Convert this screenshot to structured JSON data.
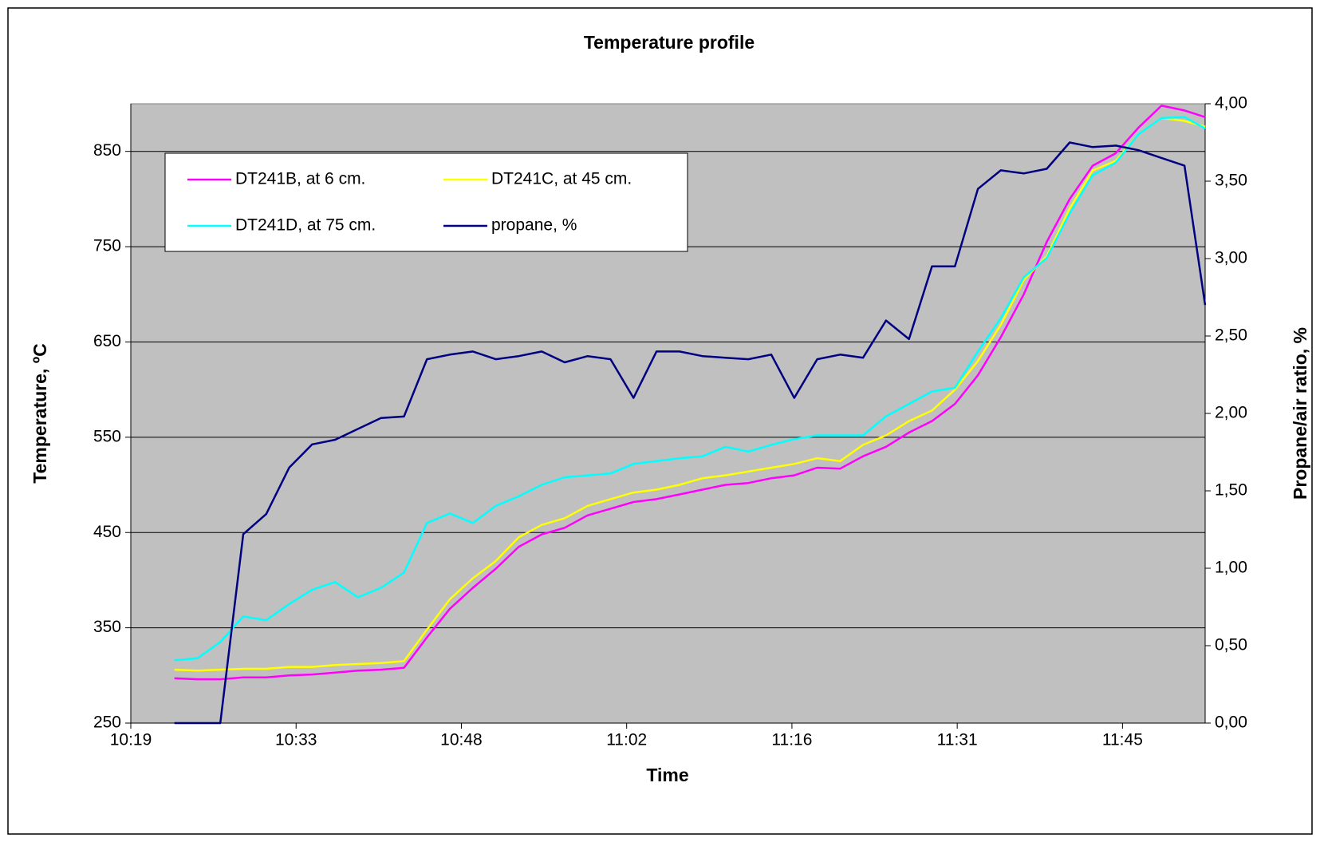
{
  "chart_data": {
    "type": "line",
    "title": "Temperature profile",
    "x_label": "Time",
    "y_label": "Temperature, ºC",
    "y2_label": "Propane/air ratio, %",
    "x": [
      623,
      625,
      627,
      629,
      631,
      633,
      635,
      637,
      639,
      641,
      643,
      645,
      647,
      649,
      651,
      653,
      655,
      657,
      659,
      661,
      663,
      665,
      667,
      669,
      671,
      673,
      675,
      677,
      679,
      681,
      683,
      685,
      687,
      689,
      691,
      693,
      695,
      697,
      699,
      701,
      703,
      705,
      707,
      709,
      711,
      712.8
    ],
    "xlim": [
      619.2,
      712.8
    ],
    "xticks": [
      {
        "value": 619.2,
        "label": "10:19"
      },
      {
        "value": 633.6,
        "label": "10:33"
      },
      {
        "value": 648,
        "label": "10:48"
      },
      {
        "value": 662.4,
        "label": "11:02"
      },
      {
        "value": 676.8,
        "label": "11:16"
      },
      {
        "value": 691.2,
        "label": "11:31"
      },
      {
        "value": 705.6,
        "label": "11:45"
      }
    ],
    "ylim": [
      250,
      900
    ],
    "yticks": [
      250,
      350,
      450,
      550,
      650,
      750,
      850
    ],
    "y2lim": [
      0,
      4
    ],
    "y2ticks": [
      {
        "value": 0,
        "label": "0,00"
      },
      {
        "value": 0.5,
        "label": "0,50"
      },
      {
        "value": 1,
        "label": "1,00"
      },
      {
        "value": 1.5,
        "label": "1,50"
      },
      {
        "value": 2,
        "label": "2,00"
      },
      {
        "value": 2.5,
        "label": "2,50"
      },
      {
        "value": 3,
        "label": "3,00"
      },
      {
        "value": 3.5,
        "label": "3,50"
      },
      {
        "value": 4,
        "label": "4,00"
      }
    ],
    "grid": true,
    "legend": "upper left",
    "background": "#c0c0c0",
    "series": [
      {
        "name": "DT241B, at 6 cm.",
        "color": "#ff00ff",
        "values": [
          297,
          296,
          296,
          298,
          298,
          300,
          301,
          303,
          305,
          306,
          308,
          340,
          370,
          392,
          412,
          435,
          448,
          455,
          468,
          475,
          482,
          485,
          490,
          495,
          500,
          502,
          507,
          510,
          518,
          517,
          530,
          540,
          555,
          567,
          585,
          615,
          655,
          700,
          755,
          800,
          835,
          848,
          875,
          898,
          893,
          886
        ]
      },
      {
        "name": "DT241C, at 45 cm.",
        "color": "#ffff00",
        "values": [
          306,
          305,
          306,
          307,
          307,
          309,
          309,
          311,
          312,
          313,
          315,
          348,
          380,
          402,
          420,
          445,
          458,
          465,
          478,
          485,
          492,
          495,
          500,
          507,
          510,
          514,
          518,
          522,
          528,
          525,
          542,
          552,
          567,
          578,
          600,
          630,
          668,
          715,
          740,
          790,
          830,
          840,
          868,
          885,
          882,
          876
        ]
      },
      {
        "name": "DT241D, at 75 cm.",
        "color": "#00ffff",
        "values": [
          316,
          318,
          335,
          362,
          358,
          375,
          390,
          398,
          382,
          392,
          408,
          460,
          470,
          460,
          478,
          488,
          500,
          508,
          510,
          512,
          522,
          525,
          528,
          530,
          540,
          535,
          542,
          548,
          552,
          552,
          552,
          572,
          585,
          598,
          602,
          640,
          675,
          718,
          738,
          785,
          825,
          838,
          868,
          885,
          886,
          874
        ]
      },
      {
        "name": "propane, %",
        "color": "#000080",
        "axis": "y2",
        "values": [
          0,
          0,
          0,
          1.22,
          1.35,
          1.65,
          1.8,
          1.83,
          1.9,
          1.97,
          1.98,
          2.35,
          2.38,
          2.4,
          2.35,
          2.37,
          2.4,
          2.33,
          2.37,
          2.35,
          2.1,
          2.4,
          2.4,
          2.37,
          2.36,
          2.35,
          2.38,
          2.1,
          2.35,
          2.38,
          2.36,
          2.6,
          2.48,
          2.95,
          2.95,
          3.45,
          3.57,
          3.55,
          3.58,
          3.75,
          3.72,
          3.73,
          3.7,
          3.65,
          3.6,
          2.7
        ]
      }
    ]
  }
}
